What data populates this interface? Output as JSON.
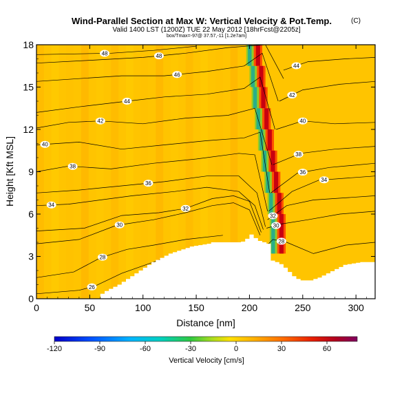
{
  "chart_data": {
    "type": "heatmap",
    "title": "Wind-Parallel Section at Max W: Vertical Velocity & Pot.Temp.",
    "title_mark": "(C)",
    "subtitle": "Valid 1400 LST (1200Z) TUE 22 May 2012 [18hrFcst@2205z]",
    "subtitle2": "box/Tmax=-97@ 37.57,-11 [1.2e7am]",
    "xlabel": "Distance [nm]",
    "ylabel": "Height [Kft MSL]",
    "xlim": [
      0,
      318
    ],
    "ylim": [
      0,
      18
    ],
    "xticks": [
      0,
      50,
      100,
      150,
      200,
      250,
      300
    ],
    "yticks": [
      0,
      3,
      6,
      9,
      12,
      15,
      18
    ],
    "colorbar": {
      "label": "Vertical Velocity [cm/s]",
      "ticks": [
        -120,
        -90,
        -60,
        -30,
        0,
        30,
        60
      ],
      "range": [
        -120,
        80
      ]
    },
    "updraft_core_x": [
      208,
      211,
      213,
      216,
      219,
      222,
      225,
      228,
      230
    ],
    "terrain": {
      "x": [
        0,
        56,
        60,
        64,
        68,
        72,
        76,
        80,
        84,
        88,
        92,
        96,
        100,
        104,
        108,
        112,
        116,
        120,
        124,
        128,
        132,
        136,
        140,
        144,
        148,
        152,
        156,
        160,
        164,
        168,
        172,
        176,
        180,
        184,
        188,
        192,
        196,
        200,
        204,
        208,
        212,
        216,
        220,
        224,
        228,
        232,
        236,
        240,
        244,
        248,
        252,
        256,
        260,
        264,
        268,
        272,
        276,
        280,
        284,
        288,
        292,
        296,
        300,
        304,
        308,
        312,
        318
      ],
      "y": [
        0,
        0,
        0.35,
        0.55,
        0.7,
        0.85,
        1.0,
        1.2,
        1.4,
        1.6,
        1.8,
        2.0,
        2.2,
        2.4,
        2.6,
        2.75,
        2.9,
        3.05,
        3.2,
        3.3,
        3.4,
        3.5,
        3.6,
        3.7,
        3.75,
        3.8,
        3.85,
        3.9,
        4.0,
        4.0,
        4.0,
        4.0,
        4.0,
        4.0,
        4.0,
        4.05,
        4.25,
        4.55,
        4.3,
        4.1,
        4.0,
        3.9,
        2.7,
        2.6,
        2.45,
        2.2,
        1.9,
        1.6,
        1.4,
        1.3,
        1.3,
        1.3,
        1.4,
        1.5,
        1.65,
        1.8,
        1.95,
        2.1,
        2.25,
        2.4,
        2.45,
        2.5,
        2.55,
        2.6,
        2.6,
        2.6,
        2.6
      ]
    },
    "theta_contours": [
      {
        "level": 26,
        "label": "26",
        "label_x": 52,
        "pts": [
          [
            0,
            0.35
          ],
          [
            40,
            0.6
          ],
          [
            55,
            0.9
          ],
          [
            80,
            1.8
          ],
          [
            110,
            2.6
          ],
          [
            140,
            3.4
          ]
        ]
      },
      {
        "level": 28,
        "label": "28",
        "label_x": 62,
        "pts": [
          [
            0,
            1.5
          ],
          [
            35,
            1.9
          ],
          [
            60,
            2.9
          ],
          [
            85,
            3.5
          ],
          [
            110,
            3.8
          ],
          [
            140,
            4.2
          ],
          [
            175,
            4.5
          ]
        ]
      },
      {
        "level": 30,
        "label": "30",
        "label_x": 78,
        "pts": [
          [
            0,
            3.9
          ],
          [
            40,
            4.2
          ],
          [
            75,
            5.2
          ],
          [
            110,
            5.6
          ],
          [
            140,
            6.1
          ],
          [
            165,
            6.6
          ],
          [
            185,
            6.8
          ],
          [
            200,
            6.3
          ],
          [
            210,
            4.5
          ]
        ]
      },
      {
        "level": 32,
        "label": "32",
        "label_x": 140,
        "pts": [
          [
            0,
            4.8
          ],
          [
            45,
            5.0
          ],
          [
            80,
            5.9
          ],
          [
            115,
            6.1
          ],
          [
            140,
            6.4
          ],
          [
            165,
            7.1
          ],
          [
            185,
            7.3
          ],
          [
            200,
            6.9
          ],
          [
            211,
            4.7
          ]
        ]
      },
      {
        "level": 34,
        "label": "34",
        "label_x": 14,
        "pts": [
          [
            0,
            6.6
          ],
          [
            30,
            6.7
          ],
          [
            60,
            7.0
          ],
          [
            90,
            7.3
          ],
          [
            130,
            7.6
          ],
          [
            160,
            7.9
          ],
          [
            190,
            7.6
          ],
          [
            205,
            6.6
          ],
          [
            213,
            4.9
          ]
        ]
      },
      {
        "level": 36,
        "label": "36",
        "label_x": 105,
        "pts": [
          [
            0,
            7.5
          ],
          [
            40,
            7.7
          ],
          [
            80,
            8.0
          ],
          [
            120,
            8.3
          ],
          [
            160,
            8.7
          ],
          [
            190,
            8.7
          ],
          [
            207,
            7.5
          ],
          [
            215,
            5.1
          ]
        ]
      },
      {
        "level": 38,
        "label": "38",
        "label_x": 34,
        "pts": [
          [
            0,
            9.0
          ],
          [
            30,
            9.4
          ],
          [
            70,
            9.2
          ],
          [
            110,
            9.6
          ],
          [
            150,
            9.9
          ],
          [
            190,
            10.3
          ],
          [
            205,
            10.2
          ],
          [
            217,
            6.2
          ]
        ]
      },
      {
        "level": 40,
        "label": "40",
        "label_x": 8,
        "pts": [
          [
            0,
            10.9
          ],
          [
            40,
            11.1
          ],
          [
            80,
            10.6
          ],
          [
            120,
            10.9
          ],
          [
            160,
            11.2
          ],
          [
            195,
            11.4
          ],
          [
            210,
            11.8
          ],
          [
            219,
            7.5
          ]
        ]
      },
      {
        "level": 42,
        "label": "42",
        "label_x": 60,
        "pts": [
          [
            0,
            12.1
          ],
          [
            30,
            12.5
          ],
          [
            60,
            12.6
          ],
          [
            100,
            12.4
          ],
          [
            140,
            12.8
          ],
          [
            180,
            13.0
          ],
          [
            205,
            13.5
          ],
          [
            221,
            9.5
          ]
        ]
      },
      {
        "level": 44,
        "label": "44",
        "label_x": 85,
        "pts": [
          [
            0,
            13.2
          ],
          [
            40,
            13.6
          ],
          [
            85,
            14.0
          ],
          [
            120,
            14.3
          ],
          [
            160,
            14.5
          ],
          [
            195,
            14.9
          ],
          [
            210,
            15.7
          ],
          [
            224,
            12.0
          ]
        ]
      },
      {
        "level": 46,
        "label": "46",
        "label_x": 132,
        "pts": [
          [
            0,
            15.4
          ],
          [
            40,
            15.6
          ],
          [
            80,
            15.8
          ],
          [
            120,
            15.8
          ],
          [
            160,
            16.1
          ],
          [
            195,
            16.5
          ],
          [
            212,
            17.4
          ],
          [
            227,
            14.0
          ]
        ]
      },
      {
        "level": 48,
        "label": "48",
        "label_x": 115,
        "pts": [
          [
            0,
            16.7
          ],
          [
            50,
            16.9
          ],
          [
            100,
            17.1
          ],
          [
            140,
            17.4
          ],
          [
            180,
            17.8
          ],
          [
            215,
            18.0
          ],
          [
            232,
            15.6
          ]
        ]
      },
      {
        "level": 48,
        "label": "48",
        "label_x": 64,
        "pts": [
          [
            0,
            17.3
          ],
          [
            70,
            17.4
          ],
          [
            110,
            17.6
          ],
          [
            150,
            17.9
          ]
        ]
      },
      {
        "level": 34,
        "label": "34",
        "label_x": 270,
        "pts": [
          [
            218,
            6.2
          ],
          [
            240,
            7.6
          ],
          [
            265,
            8.4
          ],
          [
            318,
            8.7
          ]
        ]
      },
      {
        "level": 36,
        "label": "36",
        "label_x": 250,
        "pts": [
          [
            220,
            7.5
          ],
          [
            245,
            8.9
          ],
          [
            275,
            9.3
          ],
          [
            318,
            9.6
          ]
        ]
      },
      {
        "level": 38,
        "label": "38",
        "label_x": 246,
        "pts": [
          [
            222,
            9.5
          ],
          [
            248,
            10.3
          ],
          [
            280,
            10.6
          ],
          [
            318,
            10.8
          ]
        ]
      },
      {
        "level": 40,
        "label": "40",
        "label_x": 250,
        "pts": [
          [
            225,
            12.0
          ],
          [
            250,
            12.6
          ],
          [
            280,
            12.4
          ],
          [
            318,
            12.5
          ]
        ]
      },
      {
        "level": 42,
        "label": "42",
        "label_x": 240,
        "pts": [
          [
            228,
            14.0
          ],
          [
            250,
            14.8
          ],
          [
            285,
            15.2
          ],
          [
            318,
            15.4
          ]
        ]
      },
      {
        "level": 44,
        "label": "44",
        "label_x": 244,
        "pts": [
          [
            232,
            16.2
          ],
          [
            255,
            16.8
          ],
          [
            290,
            17.0
          ],
          [
            318,
            17.1
          ]
        ]
      },
      {
        "level": 28,
        "label": "28",
        "label_x": 230,
        "pts": [
          [
            214,
            3.6
          ],
          [
            222,
            4.2
          ],
          [
            235,
            4.0
          ],
          [
            260,
            3.2
          ],
          [
            290,
            3.8
          ],
          [
            318,
            4.0
          ]
        ]
      },
      {
        "level": 30,
        "label": "30",
        "label_x": 225,
        "pts": [
          [
            216,
            5.0
          ],
          [
            230,
            5.3
          ],
          [
            255,
            5.6
          ],
          [
            285,
            6.0
          ],
          [
            318,
            6.2
          ]
        ]
      },
      {
        "level": 32,
        "label": "32",
        "label_x": 222,
        "pts": [
          [
            217,
            5.6
          ],
          [
            235,
            6.6
          ],
          [
            260,
            7.0
          ],
          [
            318,
            7.3
          ]
        ]
      }
    ]
  }
}
